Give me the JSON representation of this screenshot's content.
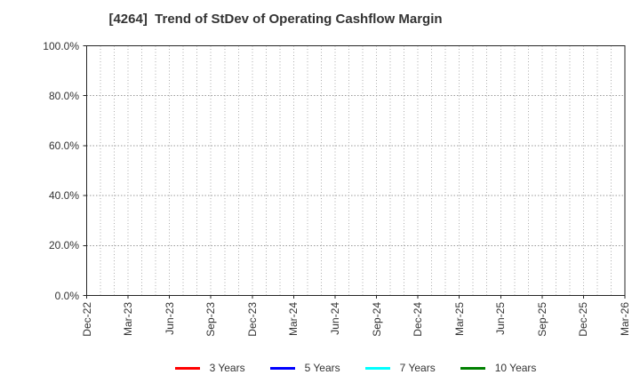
{
  "chart_data": {
    "type": "line",
    "title": "[4264]  Trend of StDev of Operating Cashflow Margin",
    "x_tick_labels": [
      "Dec-22",
      "Mar-23",
      "Jun-23",
      "Sep-23",
      "Dec-23",
      "Mar-24",
      "Jun-24",
      "Sep-24",
      "Dec-24",
      "Mar-25",
      "Jun-25",
      "Sep-25",
      "Dec-25",
      "Mar-26"
    ],
    "x_minor_gridlines_per_quarter": 3,
    "y_tick_labels": [
      "0.0%",
      "20.0%",
      "40.0%",
      "60.0%",
      "80.0%",
      "100.0%"
    ],
    "ylim": [
      0,
      100
    ],
    "grid": true,
    "legend_position": "bottom-center",
    "series": [
      {
        "name": "3 Years",
        "color": "#ff0000",
        "values": []
      },
      {
        "name": "5 Years",
        "color": "#0000ff",
        "values": []
      },
      {
        "name": "7 Years",
        "color": "#00ffff",
        "values": []
      },
      {
        "name": "10 Years",
        "color": "#008000",
        "values": []
      }
    ],
    "no_data_rendered": true
  },
  "colors": {
    "background": "#ffffff",
    "spine": "#262626",
    "grid_vertical": "#ababab",
    "grid_horizontal": "#999999",
    "text": "#333333"
  }
}
